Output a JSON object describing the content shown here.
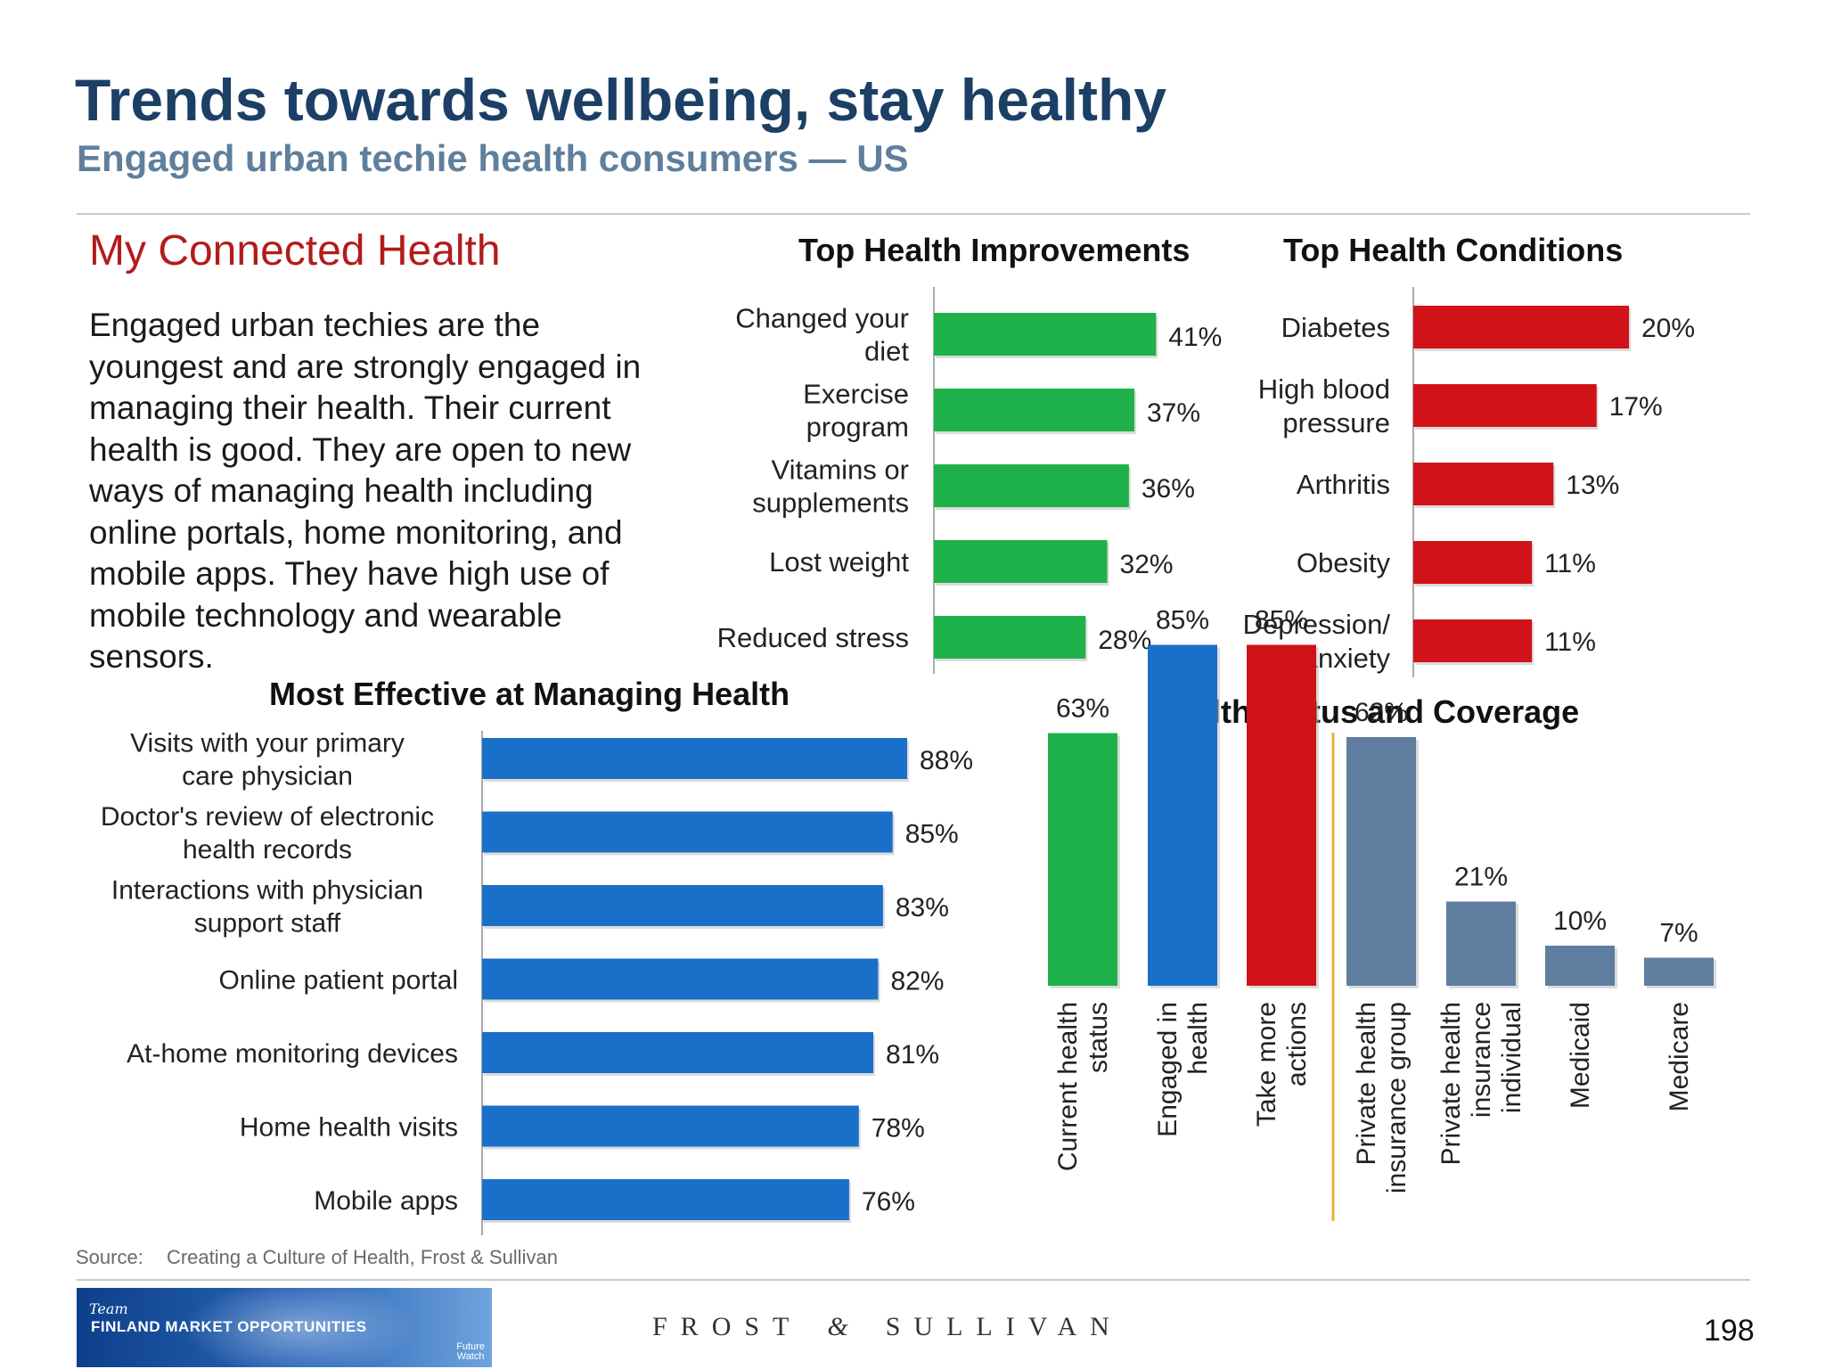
{
  "title": "Trends towards wellbeing, stay healthy",
  "subtitle": "Engaged urban techie health consumers — US",
  "panel_heading": "My Connected Health",
  "intro_text": "Engaged urban techies are the youngest and are strongly engaged in managing their health. Their current health is good. They are open to new ways of managing health including online portals, home monitoring, and mobile apps. They have high use of mobile technology and wearable sensors.",
  "colors": {
    "green": "#1fb14a",
    "red": "#d11218",
    "blue": "#1a6fc9",
    "slate": "#5f7e9f",
    "title_navy": "#1c3f66",
    "heading_red": "#b31b1b"
  },
  "chart_data": [
    {
      "id": "improvements",
      "type": "bar",
      "orientation": "horizontal",
      "title": "Top Health Improvements",
      "categories": [
        "Changed your diet",
        "Exercise program",
        "Vitamins or supplements",
        "Lost weight",
        "Reduced stress"
      ],
      "values": [
        41,
        37,
        36,
        32,
        28
      ],
      "labels": [
        "41%",
        "37%",
        "36%",
        "32%",
        "28%"
      ],
      "unit": "%",
      "color": "#1fb14a"
    },
    {
      "id": "conditions",
      "type": "bar",
      "orientation": "horizontal",
      "title": "Top Health Conditions",
      "categories": [
        "Diabetes",
        "High blood pressure",
        "Arthritis",
        "Obesity",
        "Depression/ anxiety"
      ],
      "values": [
        20,
        17,
        13,
        11,
        11
      ],
      "labels": [
        "20%",
        "17%",
        "13%",
        "11%",
        "11%"
      ],
      "unit": "%",
      "color": "#d11218"
    },
    {
      "id": "effective",
      "type": "bar",
      "orientation": "horizontal",
      "title": "Most Effective at Managing Health",
      "categories": [
        "Visits with your primary care physician",
        "Doctor's review of electronic health records",
        "Interactions with physician support staff",
        "Online patient portal",
        "At-home monitoring devices",
        "Home health visits",
        "Mobile apps"
      ],
      "values": [
        88,
        85,
        83,
        82,
        81,
        78,
        76
      ],
      "labels": [
        "88%",
        "85%",
        "83%",
        "82%",
        "81%",
        "78%",
        "76%"
      ],
      "unit": "%",
      "color": "#1a6fc9"
    },
    {
      "id": "status",
      "type": "bar",
      "orientation": "vertical",
      "title": "Health Status and Coverage",
      "categories": [
        "Current health status",
        "Engaged in health",
        "Take more actions",
        "Private health insurance group",
        "Private health insurance individual",
        "Medicaid",
        "Medicare"
      ],
      "values": [
        63,
        85,
        85,
        62,
        21,
        10,
        7
      ],
      "labels": [
        "63%",
        "85%",
        "85%",
        "62%",
        "21%",
        "10%",
        "7%"
      ],
      "colors": [
        "#1fb14a",
        "#1a6fc9",
        "#d11218",
        "#5f7e9f",
        "#5f7e9f",
        "#5f7e9f",
        "#5f7e9f"
      ],
      "unit": "%"
    }
  ],
  "source_label": "Source:",
  "source_text": "Creating a Culture of Health, Frost & Sullivan",
  "footer": {
    "logo_team": "Team",
    "logo_text": "FINLAND MARKET OPPORTUNITIES",
    "logo_tag1": "Future",
    "logo_tag2": "Watch",
    "brand_left": "FROST",
    "brand_amp": "&",
    "brand_right": "SULLIVAN",
    "page_number": "198"
  }
}
